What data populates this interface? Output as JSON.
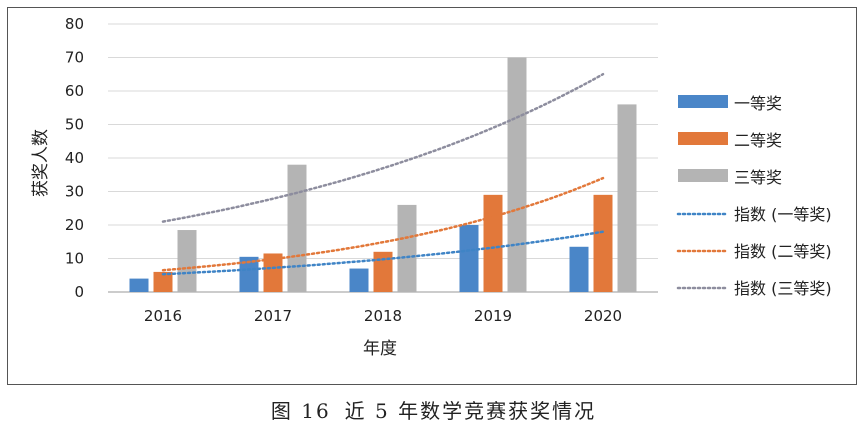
{
  "chart_data": {
    "type": "bar",
    "title": "",
    "xlabel": "年度",
    "ylabel": "获奖人数",
    "ylim": [
      0,
      80
    ],
    "yticks": [
      0,
      10,
      20,
      30,
      40,
      50,
      60,
      70,
      80
    ],
    "grid": true,
    "legend_position": "right",
    "categories": [
      "2016",
      "2017",
      "2018",
      "2019",
      "2020"
    ],
    "series": [
      {
        "name": "一等奖",
        "color": "#4a86c8",
        "values": [
          4,
          10.5,
          7,
          20,
          13.5
        ]
      },
      {
        "name": "二等奖",
        "color": "#e2783a",
        "values": [
          6,
          11.5,
          12,
          29,
          29
        ]
      },
      {
        "name": "三等奖",
        "color": "#b4b4b4",
        "values": [
          18.5,
          38,
          26,
          70,
          56
        ]
      }
    ],
    "trendlines": [
      {
        "name": "指数 (一等奖)",
        "color": "#3f84c6",
        "start": 5.3,
        "end": 18
      },
      {
        "name": "指数 (二等奖)",
        "color": "#e2783a",
        "start": 6.5,
        "end": 34
      },
      {
        "name": "指数 (三等奖)",
        "color": "#8d8d9e",
        "start": 21,
        "end": 65
      }
    ]
  },
  "caption": {
    "figure_number": "图 16",
    "title": "近 5 年数学竞赛获奖情况"
  }
}
